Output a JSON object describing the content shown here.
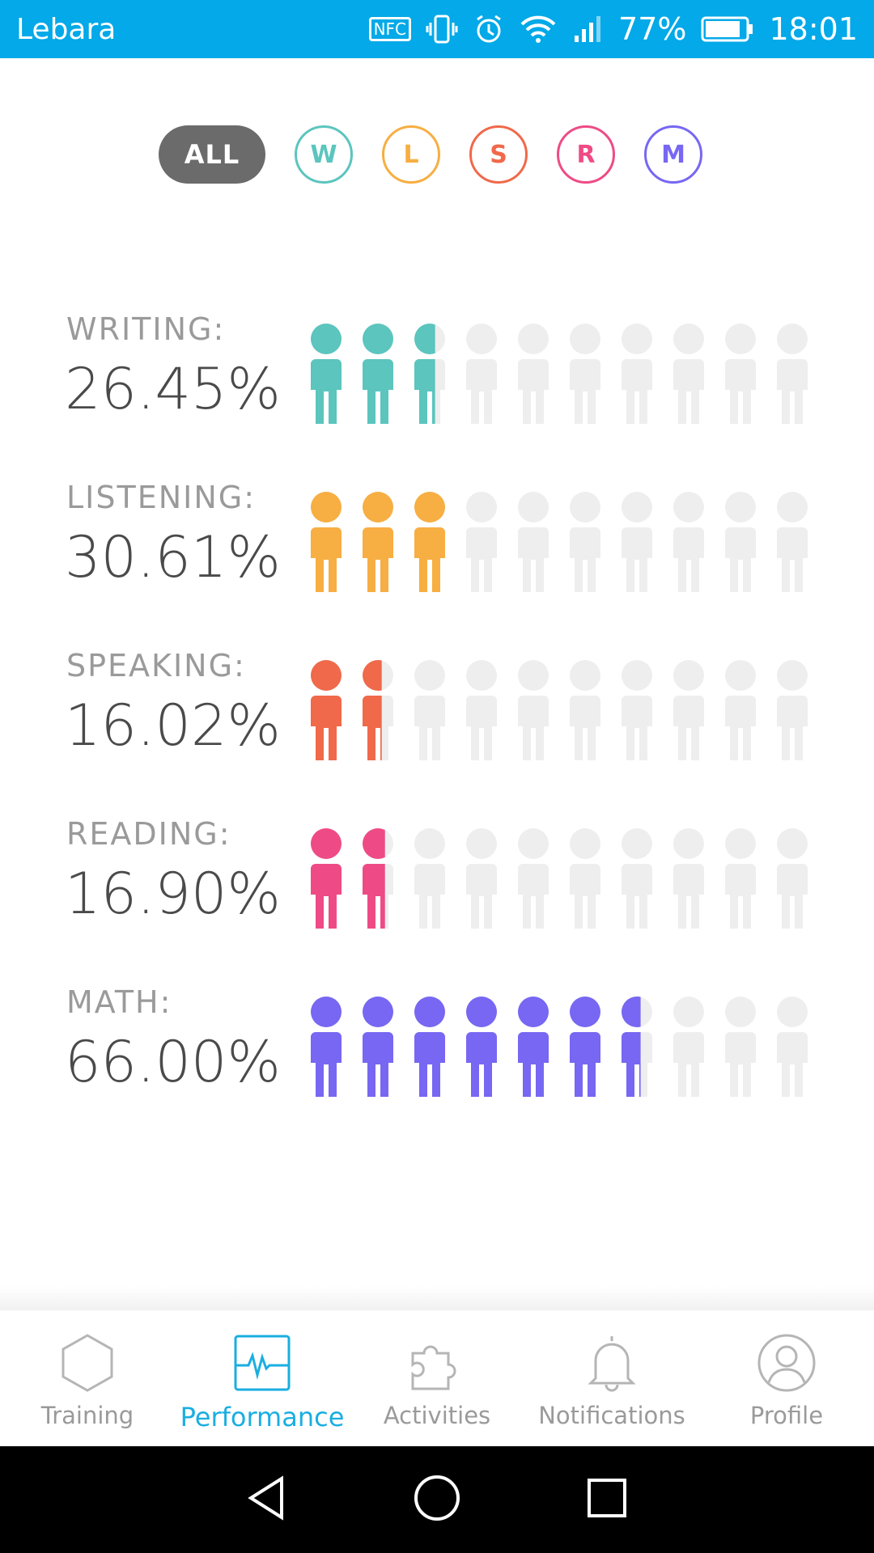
{
  "status_bar": {
    "carrier": "Lebara",
    "nfc_label": "NFC",
    "battery": "77%",
    "time": "18:01",
    "icons": [
      "nfc-icon",
      "vibrate-icon",
      "alarm-icon",
      "wifi-icon",
      "signal-icon",
      "battery-icon"
    ]
  },
  "filters": {
    "all": "ALL",
    "items": [
      {
        "letter": "W",
        "color": "#5BC5BE"
      },
      {
        "letter": "L",
        "color": "#F7AE42"
      },
      {
        "letter": "S",
        "color": "#F0694A"
      },
      {
        "letter": "R",
        "color": "#EE4B86"
      },
      {
        "letter": "M",
        "color": "#7767F2"
      }
    ]
  },
  "metrics": [
    {
      "label": "WRITING:",
      "value": "26.45%",
      "color": "#5BC5BE",
      "fraction": 0.2645
    },
    {
      "label": "LISTENING:",
      "value": "30.61%",
      "color": "#F7AE42",
      "fraction": 0.3061
    },
    {
      "label": "SPEAKING:",
      "value": "16.02%",
      "color": "#F0694A",
      "fraction": 0.1602
    },
    {
      "label": "READING:",
      "value": "16.90%",
      "color": "#EE4B86",
      "fraction": 0.169
    },
    {
      "label": "MATH:",
      "value": "66.00%",
      "color": "#7767F2",
      "fraction": 0.66
    }
  ],
  "empty_color": "#EEEEEE",
  "bottom_nav": {
    "active_color": "#1AAEE0",
    "items": [
      {
        "label": "Training",
        "icon": "hexagon-icon"
      },
      {
        "label": "Performance",
        "icon": "pulse-chart-icon",
        "active": true
      },
      {
        "label": "Activities",
        "icon": "puzzle-icon"
      },
      {
        "label": "Notifications",
        "icon": "bell-icon"
      },
      {
        "label": "Profile",
        "icon": "user-circle-icon"
      }
    ]
  },
  "system_nav": [
    "back-icon",
    "home-icon",
    "recents-icon"
  ]
}
